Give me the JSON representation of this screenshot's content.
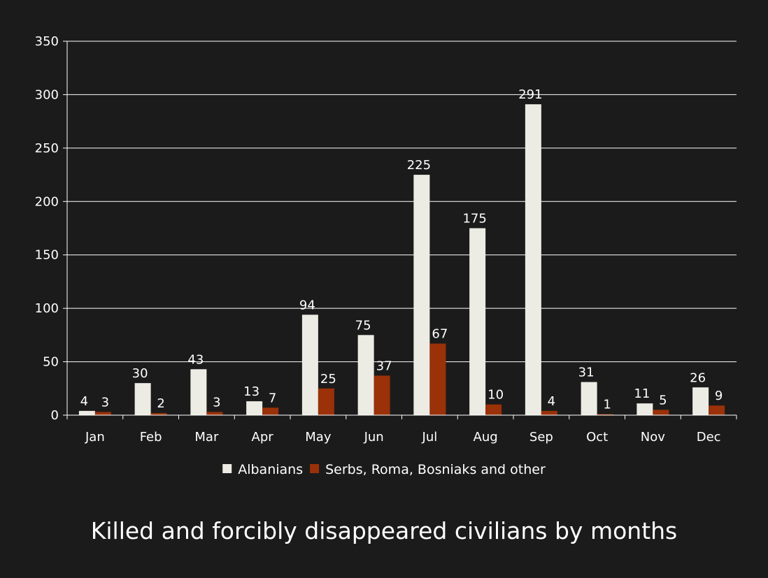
{
  "chart_data": {
    "type": "bar",
    "title": "Killed and forcibly disappeared civilians by months",
    "xlabel": "",
    "ylabel": "",
    "categories": [
      "Jan",
      "Feb",
      "Mar",
      "Apr",
      "May",
      "Jun",
      "Jul",
      "Aug",
      "Sep",
      "Oct",
      "Nov",
      "Dec"
    ],
    "series": [
      {
        "name": "Albanians",
        "color": "#ecece4",
        "values": [
          4,
          30,
          43,
          13,
          94,
          75,
          225,
          175,
          291,
          31,
          11,
          26
        ]
      },
      {
        "name": "Serbs, Roma, Bosniaks and other",
        "color": "#9a3108",
        "values": [
          3,
          2,
          3,
          7,
          25,
          37,
          67,
          10,
          4,
          1,
          5,
          9
        ]
      }
    ],
    "ylim": [
      0,
      350
    ],
    "yticks": [
      0,
      50,
      100,
      150,
      200,
      250,
      300,
      350
    ],
    "grid": true,
    "legend_position": "bottom",
    "background": "#1b1b1b",
    "gridline_color": "#ffffff"
  }
}
